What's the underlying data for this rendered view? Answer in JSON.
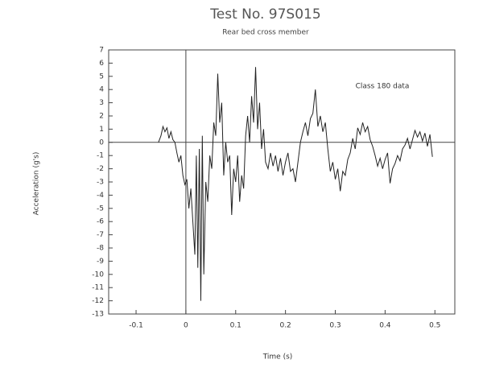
{
  "chart_data": {
    "type": "line",
    "title": "Test No. 97S015",
    "subtitle": "Rear bed cross member",
    "annotation": "Class 180 data",
    "xlabel": "Time (s)",
    "ylabel": "Acceleration (g's)",
    "color": "#222222",
    "xlim": [
      -0.155,
      0.54
    ],
    "ylim": [
      -13,
      7
    ],
    "xticks": [
      -0.1,
      0,
      0.1,
      0.2,
      0.3,
      0.4,
      0.5
    ],
    "yticks": [
      -13,
      -12,
      -11,
      -10,
      -9,
      -8,
      -7,
      -6,
      -5,
      -4,
      -3,
      -2,
      -1,
      0,
      1,
      2,
      3,
      4,
      5,
      6,
      7
    ],
    "x": [
      -0.055,
      -0.05,
      -0.046,
      -0.042,
      -0.038,
      -0.034,
      -0.03,
      -0.026,
      -0.022,
      -0.018,
      -0.014,
      -0.01,
      -0.006,
      -0.002,
      0.002,
      0.006,
      0.01,
      0.014,
      0.018,
      0.021,
      0.024,
      0.027,
      0.03,
      0.033,
      0.036,
      0.04,
      0.044,
      0.048,
      0.052,
      0.056,
      0.06,
      0.064,
      0.068,
      0.072,
      0.076,
      0.08,
      0.084,
      0.088,
      0.092,
      0.096,
      0.1,
      0.104,
      0.108,
      0.112,
      0.116,
      0.12,
      0.124,
      0.128,
      0.132,
      0.136,
      0.14,
      0.144,
      0.148,
      0.152,
      0.156,
      0.16,
      0.165,
      0.17,
      0.175,
      0.18,
      0.185,
      0.19,
      0.195,
      0.2,
      0.205,
      0.21,
      0.215,
      0.22,
      0.225,
      0.23,
      0.235,
      0.24,
      0.245,
      0.25,
      0.255,
      0.26,
      0.265,
      0.27,
      0.275,
      0.28,
      0.285,
      0.29,
      0.295,
      0.3,
      0.305,
      0.31,
      0.315,
      0.32,
      0.325,
      0.33,
      0.335,
      0.34,
      0.345,
      0.35,
      0.355,
      0.36,
      0.365,
      0.37,
      0.375,
      0.38,
      0.385,
      0.39,
      0.395,
      0.4,
      0.405,
      0.41,
      0.415,
      0.42,
      0.425,
      0.43,
      0.435,
      0.44,
      0.445,
      0.45,
      0.455,
      0.46,
      0.465,
      0.47,
      0.475,
      0.48,
      0.485,
      0.49,
      0.495
    ],
    "values": [
      0,
      0.5,
      1.2,
      0.8,
      1.1,
      0.3,
      0.8,
      0.2,
      0,
      -0.8,
      -1.5,
      -1,
      -2.5,
      -3.2,
      -2.8,
      -5,
      -3.5,
      -6,
      -8.5,
      -1,
      -9.5,
      -0.5,
      -12,
      0.5,
      -10,
      -3,
      -4.5,
      -1,
      -2,
      1.5,
      0.5,
      5.2,
      1.5,
      3,
      -2.5,
      0,
      -1.5,
      -1,
      -5.5,
      -2,
      -3,
      -1,
      -4.5,
      -2.5,
      -3.5,
      0.5,
      2,
      0,
      3.5,
      1.5,
      5.7,
      1,
      3,
      -0.5,
      1,
      -1.5,
      -2,
      -0.8,
      -1.8,
      -1,
      -2.2,
      -1.2,
      -2.5,
      -1.5,
      -0.8,
      -2.2,
      -2,
      -3,
      -1.5,
      0,
      0.8,
      1.5,
      0.5,
      1.8,
      2.2,
      4,
      1.2,
      2,
      0.8,
      1.5,
      -0.5,
      -2.2,
      -1.5,
      -2.8,
      -2,
      -3.7,
      -2.2,
      -2.5,
      -1.3,
      -0.8,
      0.3,
      -0.5,
      1.1,
      0.6,
      1.5,
      0.8,
      1.2,
      0.2,
      -0.3,
      -1,
      -1.8,
      -1.2,
      -2,
      -1.3,
      -0.8,
      -3.1,
      -2,
      -1.6,
      -1,
      -1.4,
      -0.5,
      -0.2,
      0.3,
      -0.5,
      0.2,
      0.9,
      0.4,
      0.8,
      0.1,
      0.7,
      -0.3,
      0.6,
      -1.1
    ]
  }
}
